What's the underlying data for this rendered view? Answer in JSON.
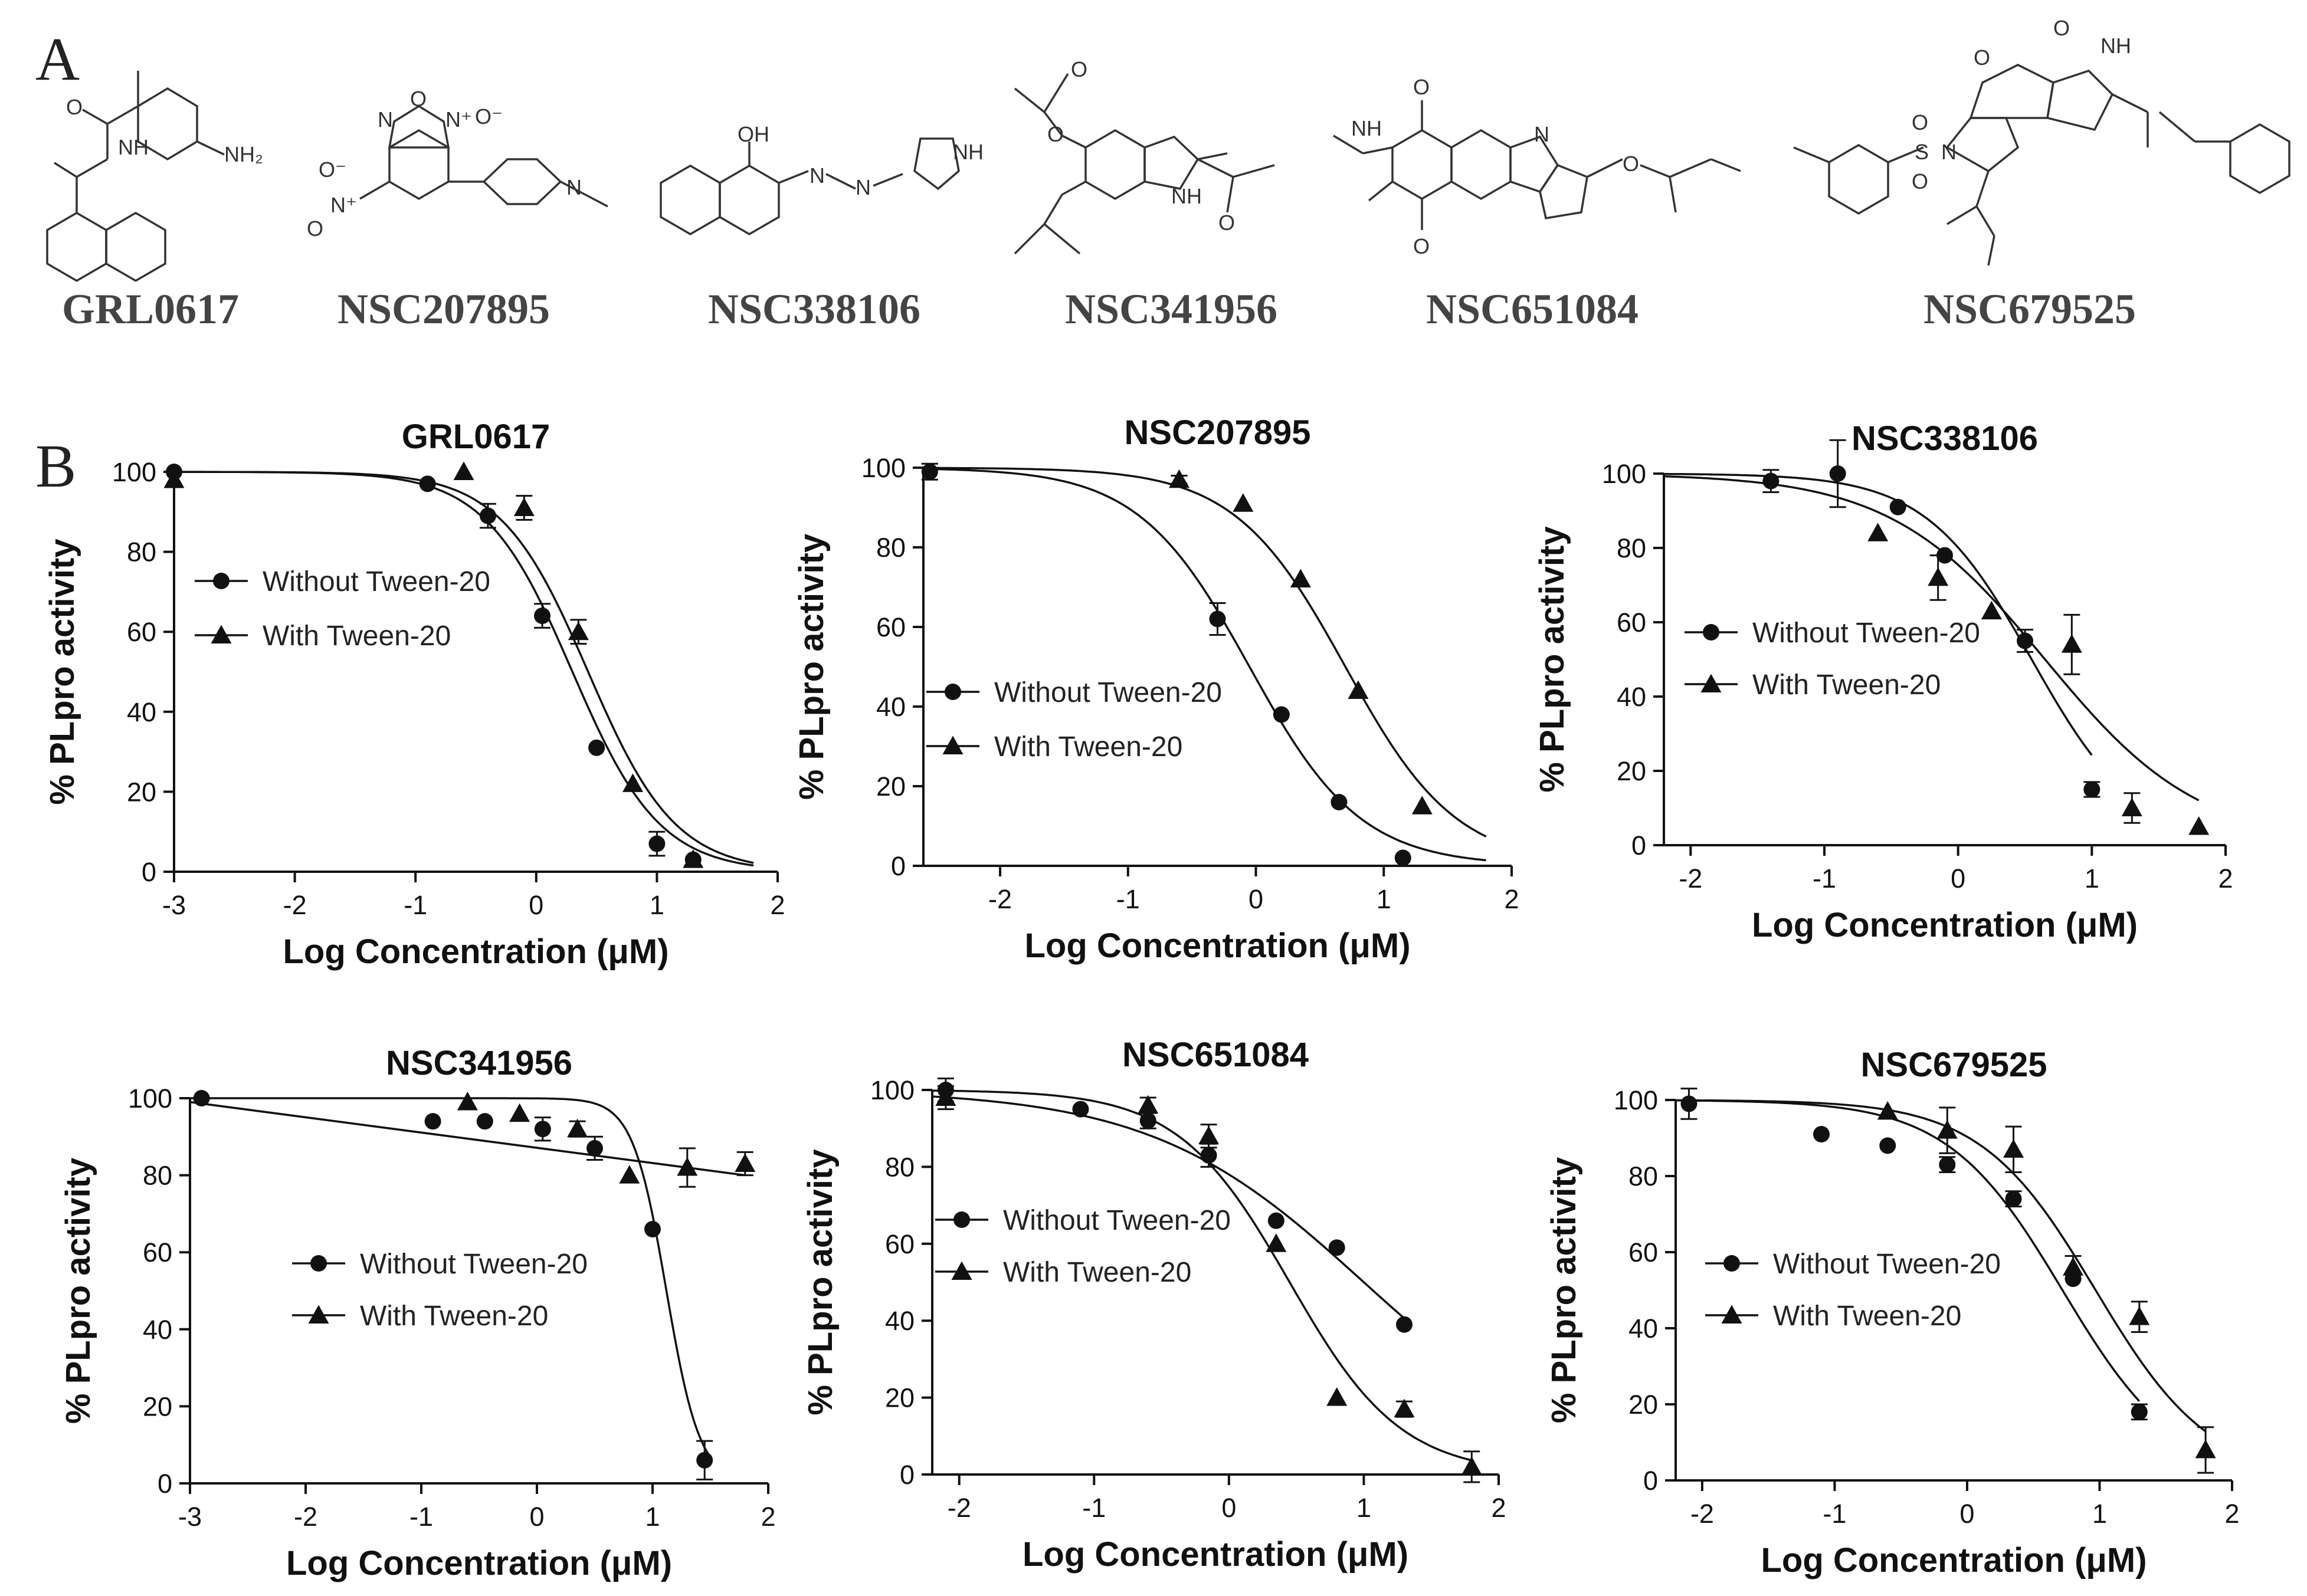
{
  "panel_labels": {
    "a": "A",
    "b": "B"
  },
  "compounds": [
    "GRL0617",
    "NSC207895",
    "NSC338106",
    "NSC341956",
    "NSC651084",
    "NSC679525"
  ],
  "legend": {
    "without": "Without Tween-20",
    "with": "With Tween-20"
  },
  "colors": {
    "ink": "#111111",
    "structure": "#333333",
    "compound_label": "#444444"
  },
  "chart_data": [
    {
      "type": "scatter",
      "title": "GRL0617",
      "xlabel": "Log Concentration (μM)",
      "ylabel": "% PLpro activity",
      "xlim": [
        -3,
        2
      ],
      "ylim": [
        0,
        100
      ],
      "xticks": [
        -3,
        -2,
        -1,
        0,
        1,
        2
      ],
      "yticks": [
        0,
        20,
        40,
        60,
        80,
        100
      ],
      "legend_position": "upper-left",
      "series": [
        {
          "name": "Without Tween-20",
          "marker": "circle",
          "x": [
            -3,
            -0.9,
            -0.4,
            0.05,
            0.5,
            1.0,
            1.3
          ],
          "y": [
            100,
            97,
            89,
            64,
            31,
            7,
            3
          ],
          "err": [
            0,
            0,
            3,
            3,
            0,
            3,
            0
          ],
          "fit": {
            "top": 100,
            "bottom": 0,
            "logIC50": 0.3,
            "hill": 1.2,
            "xmin": -3,
            "xmax": 1.8
          }
        },
        {
          "name": "With Tween-20",
          "marker": "triangle",
          "x": [
            -3,
            -0.6,
            -0.1,
            0.35,
            0.8,
            1.3
          ],
          "y": [
            98,
            100,
            91,
            60,
            22,
            3
          ],
          "err": [
            0,
            0,
            3,
            3,
            0,
            0
          ],
          "fit": {
            "top": 100,
            "bottom": 0,
            "logIC50": 0.43,
            "hill": 1.2,
            "xmin": -3,
            "xmax": 1.8
          }
        }
      ]
    },
    {
      "type": "scatter",
      "title": "NSC207895",
      "xlabel": "Log Concentration (μM)",
      "ylabel": "% PLpro activity",
      "xlim": [
        -2.6,
        2
      ],
      "ylim": [
        0,
        100
      ],
      "xticks": [
        -2,
        -1,
        0,
        1,
        2
      ],
      "yticks": [
        0,
        20,
        40,
        60,
        80,
        100
      ],
      "legend_position": "center-left",
      "series": [
        {
          "name": "Without Tween-20",
          "marker": "circle",
          "x": [
            -2.55,
            -0.3,
            0.2,
            0.65,
            1.15
          ],
          "y": [
            99,
            62,
            38,
            16,
            2
          ],
          "err": [
            2,
            4,
            0,
            0,
            0
          ],
          "fit": {
            "top": 100,
            "bottom": 0,
            "logIC50": -0.05,
            "hill": 1.0,
            "xmin": -2.6,
            "xmax": 1.8
          }
        },
        {
          "name": "With Tween-20",
          "marker": "triangle",
          "x": [
            -0.6,
            -0.1,
            0.35,
            0.8,
            1.3
          ],
          "y": [
            97,
            91,
            72,
            44,
            15
          ],
          "err": [
            1,
            0,
            0,
            0,
            0
          ],
          "fit": {
            "top": 100,
            "bottom": 0,
            "logIC50": 0.7,
            "hill": 1.0,
            "xmin": -2.6,
            "xmax": 1.8
          }
        }
      ]
    },
    {
      "type": "scatter",
      "title": "NSC338106",
      "xlabel": "Log Concentration (μM)",
      "ylabel": "% PLpro activity",
      "xlim": [
        -2.2,
        2
      ],
      "ylim": [
        0,
        100
      ],
      "xticks": [
        -2,
        -1,
        0,
        1,
        2
      ],
      "yticks": [
        0,
        20,
        40,
        60,
        80,
        100
      ],
      "legend_position": "center-left",
      "series": [
        {
          "name": "Without Tween-20",
          "marker": "circle",
          "x": [
            -1.4,
            -0.9,
            -0.45,
            -0.1,
            0.5,
            1.0
          ],
          "y": [
            98,
            100,
            91,
            78,
            55,
            15
          ],
          "err": [
            3,
            9,
            0,
            0,
            3,
            2
          ],
          "fit": {
            "top": 100,
            "bottom": 0,
            "logIC50": 0.55,
            "hill": 1.1,
            "xmin": -2.2,
            "xmax": 1.0
          }
        },
        {
          "name": "With Tween-20",
          "marker": "triangle",
          "x": [
            -0.6,
            -0.15,
            0.25,
            0.85,
            1.3,
            1.8
          ],
          "y": [
            84,
            72,
            63,
            54,
            10,
            5
          ],
          "err": [
            0,
            6,
            0,
            8,
            4,
            0
          ],
          "fit": {
            "top": 100,
            "bottom": 0,
            "logIC50": 0.65,
            "hill": 0.75,
            "xmin": -2.2,
            "xmax": 1.8
          }
        }
      ]
    },
    {
      "type": "scatter",
      "title": "NSC341956",
      "xlabel": "Log Concentration (μM)",
      "ylabel": "% PLpro activity",
      "xlim": [
        -3,
        2
      ],
      "ylim": [
        0,
        100
      ],
      "xticks": [
        -3,
        -2,
        -1,
        0,
        1,
        2
      ],
      "yticks": [
        0,
        20,
        40,
        60,
        80,
        100
      ],
      "legend_position": "center-left",
      "series": [
        {
          "name": "Without Tween-20",
          "marker": "circle",
          "x": [
            -2.9,
            -0.9,
            -0.45,
            0.05,
            0.5,
            1.0,
            1.45
          ],
          "y": [
            100,
            94,
            94,
            92,
            87,
            66,
            6
          ],
          "err": [
            0,
            0,
            0,
            3,
            3,
            0,
            5
          ],
          "fit": {
            "top": 100,
            "bottom": 0,
            "logIC50": 1.12,
            "hill": 3.0,
            "xmin": -3,
            "xmax": 1.5
          }
        },
        {
          "name": "With Tween-20",
          "marker": "triangle",
          "x": [
            -0.6,
            -0.15,
            0.35,
            0.8,
            1.3,
            1.8
          ],
          "y": [
            99,
            96,
            92,
            80,
            82,
            83
          ],
          "err": [
            0,
            0,
            2,
            0,
            5,
            3
          ],
          "fit": {
            "linear": true,
            "x0": -3,
            "y0": 99,
            "x1": 1.8,
            "y1": 80
          }
        }
      ]
    },
    {
      "type": "scatter",
      "title": "NSC651084",
      "xlabel": "Log Concentration (μM)",
      "ylabel": "% PLpro activity",
      "xlim": [
        -2.2,
        2
      ],
      "ylim": [
        0,
        100
      ],
      "xticks": [
        -2,
        -1,
        0,
        1,
        2
      ],
      "yticks": [
        0,
        20,
        40,
        60,
        80,
        100
      ],
      "legend_position": "center-left",
      "series": [
        {
          "name": "Without Tween-20",
          "marker": "circle",
          "x": [
            -2.1,
            -1.1,
            -0.6,
            -0.15,
            0.35,
            0.8,
            1.3
          ],
          "y": [
            100,
            95,
            92,
            83,
            66,
            59,
            39
          ],
          "err": [
            3,
            0,
            2,
            3,
            0,
            0,
            0
          ],
          "fit": {
            "top": 100,
            "bottom": 0,
            "logIC50": 1.0,
            "hill": 0.55,
            "xmin": -2.2,
            "xmax": 1.3
          }
        },
        {
          "name": "With Tween-20",
          "marker": "triangle",
          "x": [
            -2.1,
            -0.6,
            -0.15,
            0.35,
            0.8,
            1.3,
            1.8
          ],
          "y": [
            98,
            96,
            88,
            60,
            20,
            17,
            2
          ],
          "err": [
            3,
            2,
            3,
            0,
            0,
            2,
            4
          ],
          "fit": {
            "top": 100,
            "bottom": 0,
            "logIC50": 0.45,
            "hill": 1.05,
            "xmin": -2.2,
            "xmax": 1.8
          }
        }
      ]
    },
    {
      "type": "scatter",
      "title": "NSC679525",
      "xlabel": "Log Concentration (μM)",
      "ylabel": "% PLpro activity",
      "xlim": [
        -2.2,
        2
      ],
      "ylim": [
        0,
        100
      ],
      "xticks": [
        -2,
        -1,
        0,
        1,
        2
      ],
      "yticks": [
        0,
        20,
        40,
        60,
        80,
        100
      ],
      "legend_position": "center-left",
      "series": [
        {
          "name": "Without Tween-20",
          "marker": "circle",
          "x": [
            -2.1,
            -1.1,
            -0.6,
            -0.15,
            0.35,
            0.8,
            1.3
          ],
          "y": [
            99,
            91,
            88,
            83,
            74,
            53,
            18
          ],
          "err": [
            4,
            0,
            0,
            2,
            2,
            0,
            2
          ],
          "fit": {
            "top": 100,
            "bottom": 0,
            "logIC50": 0.72,
            "hill": 1.0,
            "xmin": -2.2,
            "xmax": 1.3
          }
        },
        {
          "name": "With Tween-20",
          "marker": "triangle",
          "x": [
            -0.6,
            -0.15,
            0.35,
            0.8,
            1.3,
            1.8
          ],
          "y": [
            97,
            92,
            87,
            56,
            43,
            8
          ],
          "err": [
            0,
            6,
            6,
            3,
            4,
            6
          ],
          "fit": {
            "top": 100,
            "bottom": 0,
            "logIC50": 0.97,
            "hill": 1.0,
            "xmin": -2.2,
            "xmax": 1.8
          }
        }
      ]
    }
  ]
}
